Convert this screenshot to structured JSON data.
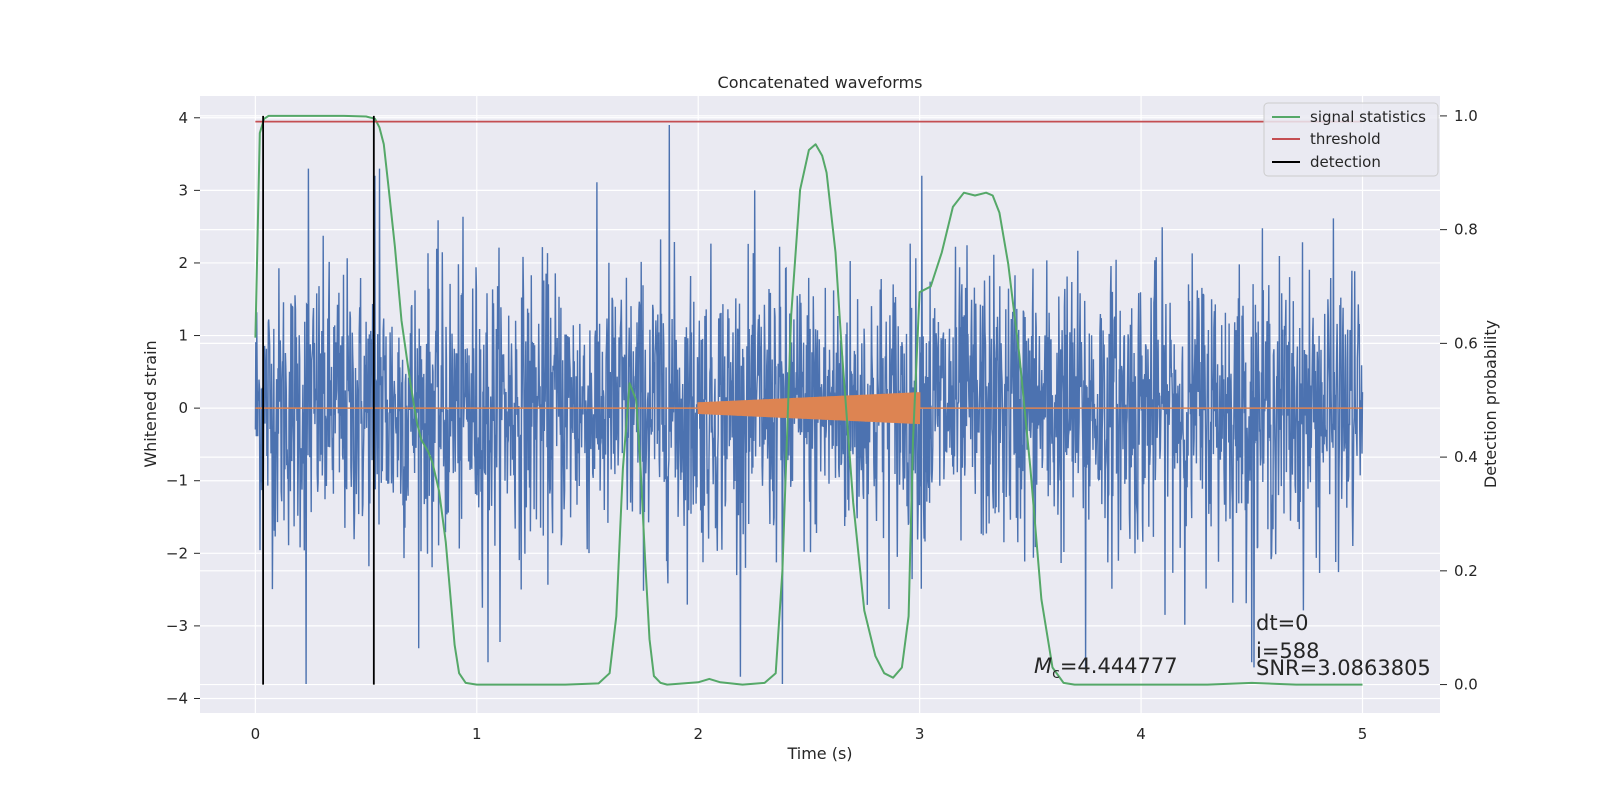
{
  "chart_data": {
    "type": "line",
    "title": "Concatenated waveforms",
    "xlabel": "Time (s)",
    "ylabel": "Whitened strain",
    "ylabel_right": "Detection probability",
    "xlim": [
      -0.25,
      5.35
    ],
    "ylim": [
      -4.2,
      4.3
    ],
    "ylim_right": [
      -0.05,
      1.035
    ],
    "xticks": [
      0,
      1,
      2,
      3,
      4,
      5
    ],
    "xtick_labels": [
      "0",
      "1",
      "2",
      "3",
      "4",
      "5"
    ],
    "yticks": [
      -4,
      -3,
      -2,
      -1,
      0,
      1,
      2,
      3,
      4
    ],
    "ytick_labels": [
      "−4",
      "−3",
      "−2",
      "−1",
      "0",
      "1",
      "2",
      "3",
      "4"
    ],
    "yticks_right": [
      0.0,
      0.2,
      0.4,
      0.6,
      0.8,
      1.0
    ],
    "ytick_right_labels": [
      "0.0",
      "0.2",
      "0.4",
      "0.6",
      "0.8",
      "1.0"
    ],
    "grid": true,
    "legend_position": "top-right",
    "colors": {
      "background": "#eaeaf2",
      "grid": "#ffffff",
      "strain": "#4c72b0",
      "template": "#dd8452",
      "signal": "#55a868",
      "threshold": "#c44e52",
      "detection": "#000000"
    },
    "series": [
      {
        "name": "signal statistics",
        "axis": "right",
        "x": [
          0.0,
          0.02,
          0.04,
          0.06,
          0.1,
          0.2,
          0.3,
          0.4,
          0.5,
          0.54,
          0.56,
          0.58,
          0.6,
          0.63,
          0.66,
          0.7,
          0.73,
          0.75,
          0.78,
          0.8,
          0.83,
          0.86,
          0.88,
          0.9,
          0.92,
          0.95,
          1.0,
          1.2,
          1.4,
          1.55,
          1.6,
          1.63,
          1.66,
          1.69,
          1.72,
          1.74,
          1.76,
          1.78,
          1.8,
          1.83,
          1.86,
          2.0,
          2.05,
          2.1,
          2.2,
          2.3,
          2.35,
          2.38,
          2.42,
          2.46,
          2.5,
          2.53,
          2.56,
          2.58,
          2.62,
          2.65,
          2.7,
          2.75,
          2.8,
          2.84,
          2.88,
          2.92,
          2.95,
          2.97,
          3.0,
          3.05,
          3.1,
          3.15,
          3.2,
          3.25,
          3.3,
          3.33,
          3.36,
          3.4,
          3.45,
          3.5,
          3.55,
          3.6,
          3.65,
          3.7,
          4.0,
          4.3,
          4.5,
          4.7,
          5.0
        ],
        "y": [
          0.61,
          0.97,
          0.995,
          1.0,
          1.0,
          1.0,
          1.0,
          1.0,
          0.999,
          0.995,
          0.98,
          0.95,
          0.88,
          0.77,
          0.64,
          0.53,
          0.46,
          0.43,
          0.41,
          0.39,
          0.34,
          0.25,
          0.16,
          0.07,
          0.02,
          0.003,
          0.0,
          0.0,
          0.0,
          0.002,
          0.02,
          0.12,
          0.38,
          0.53,
          0.5,
          0.38,
          0.22,
          0.08,
          0.015,
          0.003,
          0.0,
          0.004,
          0.01,
          0.004,
          0.0,
          0.003,
          0.02,
          0.2,
          0.65,
          0.87,
          0.94,
          0.95,
          0.93,
          0.9,
          0.76,
          0.58,
          0.32,
          0.13,
          0.05,
          0.02,
          0.012,
          0.03,
          0.12,
          0.43,
          0.69,
          0.7,
          0.76,
          0.84,
          0.865,
          0.86,
          0.865,
          0.86,
          0.83,
          0.74,
          0.58,
          0.38,
          0.15,
          0.03,
          0.003,
          0.0,
          0.0,
          0.0,
          0.003,
          0.0,
          0.0
        ]
      },
      {
        "name": "threshold",
        "axis": "right",
        "x": [
          0.0,
          5.0
        ],
        "y": [
          0.99,
          0.99
        ]
      },
      {
        "name": "detection",
        "axis": "right",
        "vlines_x": [
          0.035,
          0.535
        ],
        "y_range": [
          0.0,
          1.0
        ]
      },
      {
        "name": "",
        "axis": "left",
        "description_only": "whitened noise trace",
        "x_range": [
          0.0,
          5.0
        ],
        "spikes": [
          [
            0.23,
            -3.8
          ],
          [
            0.24,
            3.3
          ],
          [
            0.54,
            3.2
          ],
          [
            0.56,
            3.3
          ],
          [
            1.87,
            3.9
          ],
          [
            2.38,
            -3.8
          ],
          [
            4.5,
            -3.5
          ],
          [
            3.75,
            -3.6
          ],
          [
            3.01,
            3.2
          ],
          [
            1.05,
            -3.5
          ]
        ]
      },
      {
        "name": "",
        "axis": "left",
        "description_only": "injected chirp template",
        "x_range": [
          2.0,
          3.0
        ],
        "amplitude_range": [
          0.08,
          0.22
        ]
      }
    ],
    "annotations": {
      "mc_label": "M",
      "mc_sub": "c",
      "mc_value": "=4.444777",
      "dt": "dt=0",
      "index": "i=588",
      "snr": "SNR=3.0863805"
    }
  }
}
